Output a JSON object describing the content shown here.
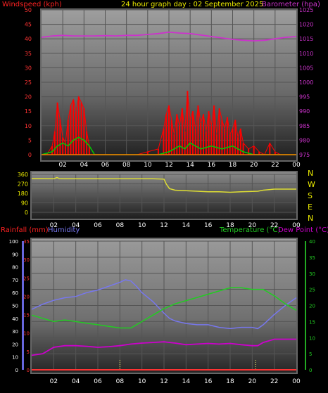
{
  "header": {
    "title": "24 hour graph day : 02 September 2025",
    "left_label": "Windspeed (kph)",
    "right_label": "Barometer (hpa)"
  },
  "middle": {
    "compass": [
      "N",
      "W",
      "S",
      "E",
      "N"
    ]
  },
  "bottom_header": {
    "rain_label": "Rainfall (mm)",
    "humidity_label": "Humidity",
    "temp_label": "Temperature (°C)",
    "dew_label": "Dew Point (°C)"
  },
  "colors": {
    "wind": "#ff0000",
    "gust_avg": "#00cc00",
    "baro": "#cc33cc",
    "direction": "#dddd33",
    "humidity": "#7777ee",
    "temperature": "#22cc22",
    "dewpoint": "#cc00cc",
    "rain": "#ff3333",
    "title": "#eeee00"
  },
  "chart_data": [
    {
      "type": "line",
      "title": "24 hour graph day : 02 September 2025",
      "xlabel": "",
      "x_ticks": [
        "02",
        "04",
        "06",
        "08",
        "10",
        "12",
        "14",
        "16",
        "18",
        "20",
        "22",
        "00"
      ],
      "y_left": {
        "label": "Windspeed (kph)",
        "ticks": [
          0,
          5,
          10,
          15,
          20,
          25,
          30,
          35,
          40,
          45,
          50
        ],
        "lim": [
          0,
          50
        ]
      },
      "y_right": {
        "label": "Barometer (hpa)",
        "ticks": [
          975,
          980,
          985,
          990,
          995,
          1000,
          1005,
          1010,
          1015,
          1020,
          1025
        ],
        "lim": [
          975,
          1025
        ]
      },
      "series": [
        {
          "name": "Barometer (hpa)",
          "axis": "right",
          "x": [
            0,
            1,
            2,
            3,
            4,
            5,
            6,
            7,
            8,
            9,
            10,
            11,
            12,
            13,
            14,
            15,
            16,
            17,
            18,
            19,
            20,
            21,
            22,
            23,
            24
          ],
          "values": [
            1015.5,
            1016.0,
            1016.2,
            1016.0,
            1016.0,
            1016.0,
            1016.1,
            1016.0,
            1016.2,
            1016.2,
            1016.5,
            1016.8,
            1017.3,
            1017.0,
            1016.8,
            1016.3,
            1015.8,
            1015.3,
            1014.8,
            1014.5,
            1014.3,
            1014.5,
            1015.0,
            1015.5,
            1015.8
          ]
        },
        {
          "name": "Windspeed",
          "axis": "left",
          "x": [
            0,
            0.5,
            1,
            1.25,
            1.5,
            1.75,
            2,
            2.25,
            2.5,
            2.75,
            3,
            3.25,
            3.5,
            3.75,
            4,
            4.25,
            4.5,
            5,
            6,
            7,
            8,
            9,
            10,
            11,
            11.5,
            11.75,
            12,
            12.25,
            12.5,
            12.75,
            13,
            13.25,
            13.5,
            13.75,
            14,
            14.25,
            14.5,
            14.75,
            15,
            15.25,
            15.5,
            15.75,
            16,
            16.25,
            16.5,
            16.75,
            17,
            17.25,
            17.5,
            17.75,
            18,
            18.25,
            18.5,
            18.75,
            19,
            19.5,
            20,
            20.5,
            21,
            21.5,
            22,
            22.5,
            23,
            24
          ],
          "values": [
            0,
            0,
            3,
            8,
            18,
            12,
            6,
            4,
            12,
            17,
            19,
            15,
            20,
            18,
            16,
            8,
            3,
            0,
            0,
            0,
            0,
            0,
            1,
            2,
            9,
            14,
            17,
            12,
            7,
            14,
            10,
            16,
            8,
            22,
            12,
            15,
            9,
            17,
            11,
            14,
            8,
            15,
            10,
            17,
            7,
            16,
            12,
            9,
            13,
            7,
            9,
            12,
            6,
            9,
            4,
            2,
            3,
            1,
            0,
            4,
            1,
            0,
            0,
            0
          ]
        },
        {
          "name": "Average wind",
          "axis": "left",
          "x": [
            0,
            1,
            1.5,
            2,
            2.5,
            3,
            3.5,
            4,
            4.5,
            5,
            11,
            12,
            12.5,
            13,
            13.5,
            14,
            14.5,
            15,
            16,
            17,
            18,
            18.5,
            19,
            20,
            24
          ],
          "values": [
            0,
            1,
            3,
            4,
            3,
            5,
            6,
            5,
            3,
            0,
            0,
            1,
            2,
            3,
            2,
            4,
            3,
            2,
            3,
            2,
            3,
            2,
            1,
            0,
            0
          ]
        }
      ]
    },
    {
      "type": "line",
      "title": "",
      "x_ticks": [
        "02",
        "04",
        "06",
        "08",
        "10",
        "12",
        "14",
        "16",
        "18",
        "20",
        "22",
        "00"
      ],
      "y_left": {
        "label": "",
        "ticks": [
          0,
          90,
          180,
          270,
          360
        ],
        "lim": [
          0,
          360
        ]
      },
      "y_right_labels": [
        "N",
        "W",
        "S",
        "E",
        "N"
      ],
      "series": [
        {
          "name": "Wind direction",
          "x": [
            0,
            1,
            2,
            2.3,
            2.5,
            3,
            4,
            5,
            6,
            7,
            8,
            9,
            10,
            11,
            12,
            12.2,
            12.5,
            13,
            14,
            15,
            16,
            17,
            18,
            19,
            20,
            20.5,
            21,
            22,
            23,
            24
          ],
          "values": [
            320,
            320,
            318,
            330,
            320,
            318,
            318,
            318,
            318,
            318,
            318,
            318,
            318,
            318,
            315,
            270,
            225,
            210,
            205,
            200,
            195,
            195,
            190,
            195,
            198,
            200,
            210,
            220,
            220,
            220
          ]
        }
      ]
    },
    {
      "type": "line",
      "title": "",
      "x_ticks": [
        "02",
        "04",
        "06",
        "08",
        "10",
        "12",
        "14",
        "16",
        "18",
        "20",
        "22",
        "00"
      ],
      "y_left_outer": {
        "label": "Rainfall (mm)",
        "ticks": [
          0,
          5,
          10,
          15,
          20,
          25,
          30,
          35
        ],
        "lim": [
          0,
          35
        ]
      },
      "y_left_inner": {
        "label": "Humidity",
        "ticks": [
          0,
          10,
          20,
          30,
          40,
          50,
          60,
          70,
          80,
          90,
          100
        ],
        "lim": [
          0,
          100
        ]
      },
      "y_right": {
        "label": "Temperature (°C) Dew Point (°C)",
        "ticks": [
          0,
          5,
          10,
          15,
          20,
          25,
          30,
          35,
          40
        ],
        "lim": [
          0,
          40
        ]
      },
      "series": [
        {
          "name": "Humidity",
          "axis": "left_inner",
          "x": [
            0,
            1,
            2,
            3,
            4,
            5,
            6,
            7,
            8,
            8.5,
            9,
            9.5,
            10,
            11,
            12,
            12.5,
            13,
            14,
            15,
            16,
            17,
            18,
            19,
            20,
            20.5,
            21,
            22,
            23,
            24
          ],
          "values": [
            47,
            51,
            54,
            56,
            57,
            60,
            62,
            65,
            68,
            70,
            69,
            65,
            60,
            53,
            44,
            40,
            38,
            36,
            35,
            35,
            33,
            32,
            33,
            33,
            32,
            35,
            43,
            50,
            56
          ]
        },
        {
          "name": "Temperature (°C)",
          "axis": "right",
          "x": [
            0,
            1,
            2,
            3,
            4,
            5,
            6,
            7,
            8,
            9,
            10,
            11,
            12,
            13,
            14,
            15,
            16,
            17,
            18,
            19,
            20,
            21,
            22,
            23,
            24
          ],
          "values": [
            17,
            16,
            15,
            15.5,
            15,
            14.5,
            14,
            13.5,
            13,
            13,
            15,
            17,
            19,
            20.5,
            21.5,
            22.5,
            23.5,
            24.5,
            25.5,
            25.5,
            25,
            25,
            23,
            20.5,
            18.5
          ]
        },
        {
          "name": "Dew Point (°C)",
          "axis": "right",
          "x": [
            0,
            1,
            2,
            3,
            4,
            5,
            6,
            7,
            8,
            9,
            10,
            11,
            12,
            13,
            14,
            15,
            16,
            17,
            18,
            19,
            20,
            20.5,
            21,
            22,
            23,
            24
          ],
          "values": [
            4.5,
            5,
            7,
            7.5,
            7.5,
            7.3,
            7,
            7.2,
            7.5,
            8,
            8.3,
            8.5,
            8.7,
            8.3,
            7.8,
            8,
            8.2,
            8,
            8.2,
            7.8,
            7.5,
            7.5,
            8.5,
            9.5,
            9.5,
            9.5
          ]
        },
        {
          "name": "Rainfall (mm)",
          "axis": "left_outer",
          "x": [
            0,
            24
          ],
          "values": [
            0,
            0
          ]
        }
      ]
    }
  ]
}
